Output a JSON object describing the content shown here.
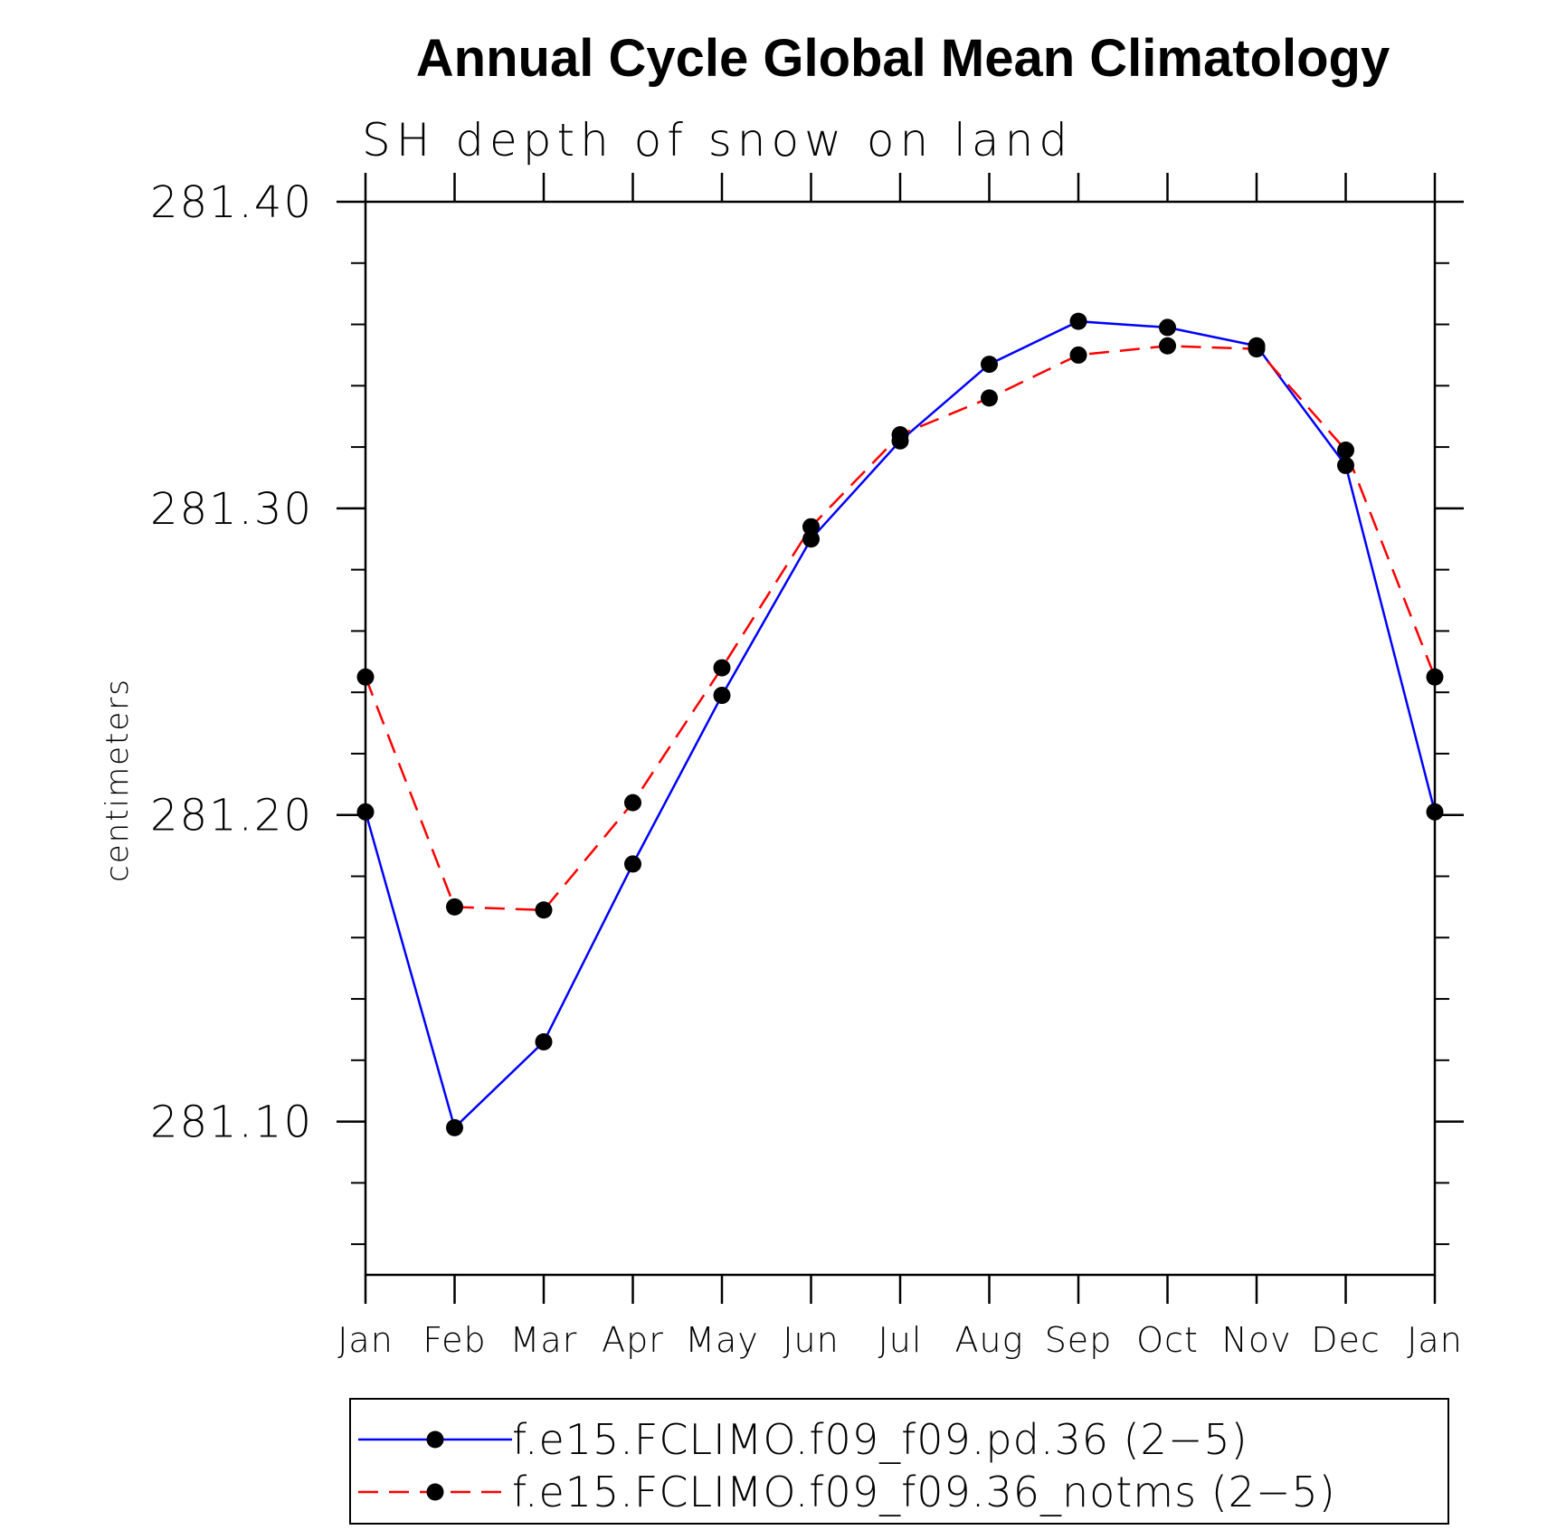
{
  "chart_data": {
    "type": "line",
    "title": "Annual Cycle Global Mean Climatology",
    "subtitle": "SH depth of snow on land",
    "ylabel": "centimeters",
    "xlabel": "",
    "categories": [
      "Jan",
      "Feb",
      "Mar",
      "Apr",
      "May",
      "Jun",
      "Jul",
      "Aug",
      "Sep",
      "Oct",
      "Nov",
      "Dec",
      "Jan"
    ],
    "ylim": [
      281.05,
      281.4
    ],
    "yticks": [
      281.1,
      281.2,
      281.3,
      281.4
    ],
    "ytick_labels": [
      "281.10",
      "281.20",
      "281.30",
      "281.40"
    ],
    "series": [
      {
        "name": "f.e15.FCLIMO.f09_f09.pd.36 (2−5)",
        "color": "#0000ff",
        "dash": "solid",
        "values": [
          281.201,
          281.098,
          281.126,
          281.184,
          281.239,
          281.29,
          281.322,
          281.347,
          281.361,
          281.359,
          281.353,
          281.314,
          281.201
        ]
      },
      {
        "name": "f.e15.FCLIMO.f09_f09.36_notms (2−5)",
        "color": "#ff0000",
        "dash": "dashed",
        "values": [
          281.245,
          281.17,
          281.169,
          281.204,
          281.248,
          281.294,
          281.324,
          281.336,
          281.35,
          281.353,
          281.352,
          281.319,
          281.245
        ]
      }
    ],
    "legend_position": "bottom"
  }
}
